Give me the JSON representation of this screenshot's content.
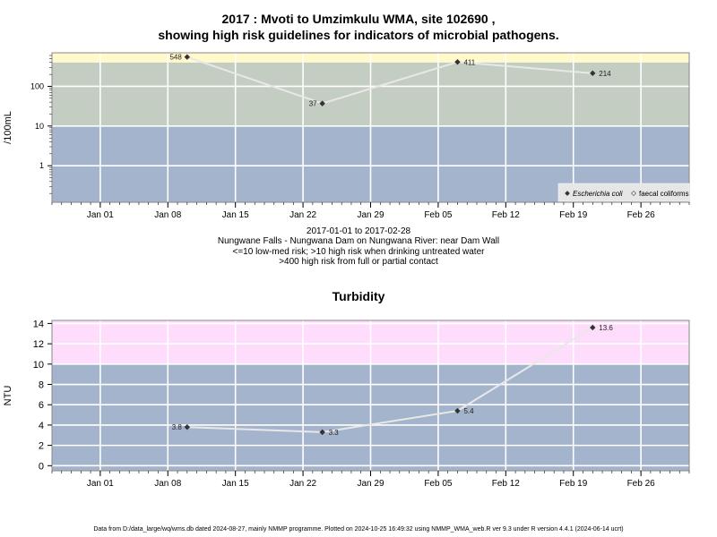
{
  "top_title_line1": "2017 : Mvoti to Umzimkulu WMA, site 102690 ,",
  "top_title_line2": "showing high risk guidelines for indicators of microbial pathogens.",
  "caption": {
    "date_range": "2017-01-01 to 2017-02-28",
    "site": "Nungwane Falls - Nungwana Dam on Nungwana River: near Dam Wall",
    "line3": "<=10 low-med risk; >10 high risk when drinking untreated water",
    "line4": ">400 high risk from full or partial contact"
  },
  "bottom_title": "Turbidity",
  "footer": "Data from D:/data_large/wq/wms.db dated 2024-08-27, mainly NMMP programme. Plotted on 2024-10-25 16:49:32 using NMMP_WMA_web.R ver 9.3 under R version 4.4.1 (2024-06-14 ucrt)",
  "colors": {
    "low_risk": "#a3b4cc",
    "high_risk": "#c4cdc1",
    "very_high_risk": "#fff9cc",
    "turbidity_low": "#a3b4cc",
    "turbidity_high": "#fdddfb",
    "line": "#e8e8e8",
    "point": "#333333"
  },
  "chart_data": [
    {
      "type": "line",
      "title": "2017 : Mvoti to Umzimkulu WMA, site 102690 , showing high risk guidelines for indicators of microbial pathogens.",
      "ylabel": "/100mL",
      "y_scale": "log",
      "ylim": [
        0.12,
        700
      ],
      "xlim": [
        "2016-12-27",
        "2017-03-03"
      ],
      "x_ticks": [
        {
          "date": "2017-01-01",
          "label": "Jan 01"
        },
        {
          "date": "2017-01-08",
          "label": "Jan 08"
        },
        {
          "date": "2017-01-15",
          "label": "Jan 15"
        },
        {
          "date": "2017-01-22",
          "label": "Jan 22"
        },
        {
          "date": "2017-01-29",
          "label": "Jan 29"
        },
        {
          "date": "2017-02-05",
          "label": "Feb 05"
        },
        {
          "date": "2017-02-12",
          "label": "Feb 12"
        },
        {
          "date": "2017-02-19",
          "label": "Feb 19"
        },
        {
          "date": "2017-02-26",
          "label": "Feb 26"
        }
      ],
      "y_ticks": [
        {
          "value": 1,
          "label": "1"
        },
        {
          "value": 10,
          "label": "10"
        },
        {
          "value": 100,
          "label": "100"
        }
      ],
      "bands": [
        {
          "from": 0.12,
          "to": 10,
          "color": "#a3b4cc"
        },
        {
          "from": 10,
          "to": 400,
          "color": "#c4cdc1"
        },
        {
          "from": 400,
          "to": 700,
          "color": "#fff9cc"
        }
      ],
      "grid": true,
      "legend_position": "bottom-right",
      "legend": [
        {
          "label": "Escherichia coli",
          "marker": "filled-diamond",
          "italic": true
        },
        {
          "label": "faecal coliforms",
          "marker": "open-diamond",
          "italic": false
        }
      ],
      "series": [
        {
          "name": "Escherichia coli",
          "points": [
            {
              "x": "2017-01-10",
              "y": 548,
              "label": "548"
            },
            {
              "x": "2017-01-24",
              "y": 37,
              "label": "37"
            },
            {
              "x": "2017-02-07",
              "y": 411,
              "label": "411"
            },
            {
              "x": "2017-02-21",
              "y": 214,
              "label": "214"
            }
          ]
        }
      ]
    },
    {
      "type": "line",
      "title": "Turbidity",
      "ylabel": "NTU",
      "y_scale": "linear",
      "ylim": [
        -0.5,
        14.3
      ],
      "xlim": [
        "2016-12-27",
        "2017-03-03"
      ],
      "x_ticks": [
        {
          "date": "2017-01-01",
          "label": "Jan 01"
        },
        {
          "date": "2017-01-08",
          "label": "Jan 08"
        },
        {
          "date": "2017-01-15",
          "label": "Jan 15"
        },
        {
          "date": "2017-01-22",
          "label": "Jan 22"
        },
        {
          "date": "2017-01-29",
          "label": "Jan 29"
        },
        {
          "date": "2017-02-05",
          "label": "Feb 05"
        },
        {
          "date": "2017-02-12",
          "label": "Feb 12"
        },
        {
          "date": "2017-02-19",
          "label": "Feb 19"
        },
        {
          "date": "2017-02-26",
          "label": "Feb 26"
        }
      ],
      "y_ticks": [
        {
          "value": 0,
          "label": "0"
        },
        {
          "value": 2,
          "label": "2"
        },
        {
          "value": 4,
          "label": "4"
        },
        {
          "value": 6,
          "label": "6"
        },
        {
          "value": 8,
          "label": "8"
        },
        {
          "value": 10,
          "label": "10"
        },
        {
          "value": 12,
          "label": "12"
        },
        {
          "value": 14,
          "label": "14"
        }
      ],
      "bands": [
        {
          "from": -0.5,
          "to": 10,
          "color": "#a3b4cc"
        },
        {
          "from": 10,
          "to": 14.3,
          "color": "#fdddfb"
        }
      ],
      "grid": true,
      "series": [
        {
          "name": "Turbidity",
          "points": [
            {
              "x": "2017-01-10",
              "y": 3.8,
              "label": "3.8"
            },
            {
              "x": "2017-01-24",
              "y": 3.3,
              "label": "3.3"
            },
            {
              "x": "2017-02-07",
              "y": 5.4,
              "label": "5.4"
            },
            {
              "x": "2017-02-21",
              "y": 13.6,
              "label": "13.6"
            }
          ]
        }
      ]
    }
  ]
}
